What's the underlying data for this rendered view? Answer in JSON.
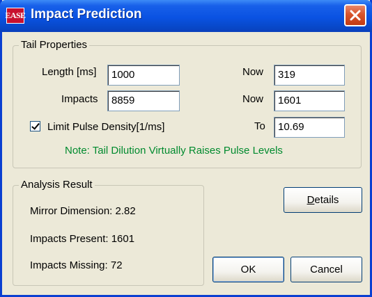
{
  "window": {
    "title": "Impact Prediction",
    "app_icon_text": "EASE"
  },
  "tail_properties": {
    "legend": "Tail Properties",
    "length_label": "Length [ms]",
    "length_value": "1000",
    "impacts_label": "Impacts",
    "impacts_value": "8859",
    "now1_label": "Now",
    "now1_value": "319",
    "now2_label": "Now",
    "now2_value": "1601",
    "to_label": "To",
    "to_value": "10.69",
    "limit_checkbox_label": "Limit Pulse Density[1/ms]",
    "limit_checked": true,
    "note": "Note: Tail Dilution Virtually Raises Pulse Levels"
  },
  "analysis_result": {
    "legend": "Analysis Result",
    "mirror_dimension": "Mirror Dimension: 2.82",
    "impacts_present": "Impacts Present: 1601",
    "impacts_missing": "Impacts Missing: 72"
  },
  "buttons": {
    "details": "Details",
    "ok": "OK",
    "cancel": "Cancel"
  },
  "colors": {
    "titlebar": "#0a52e2",
    "note_text": "#008a2e",
    "close_button": "#d8542c",
    "dialog_bg": "#ece9d8"
  }
}
